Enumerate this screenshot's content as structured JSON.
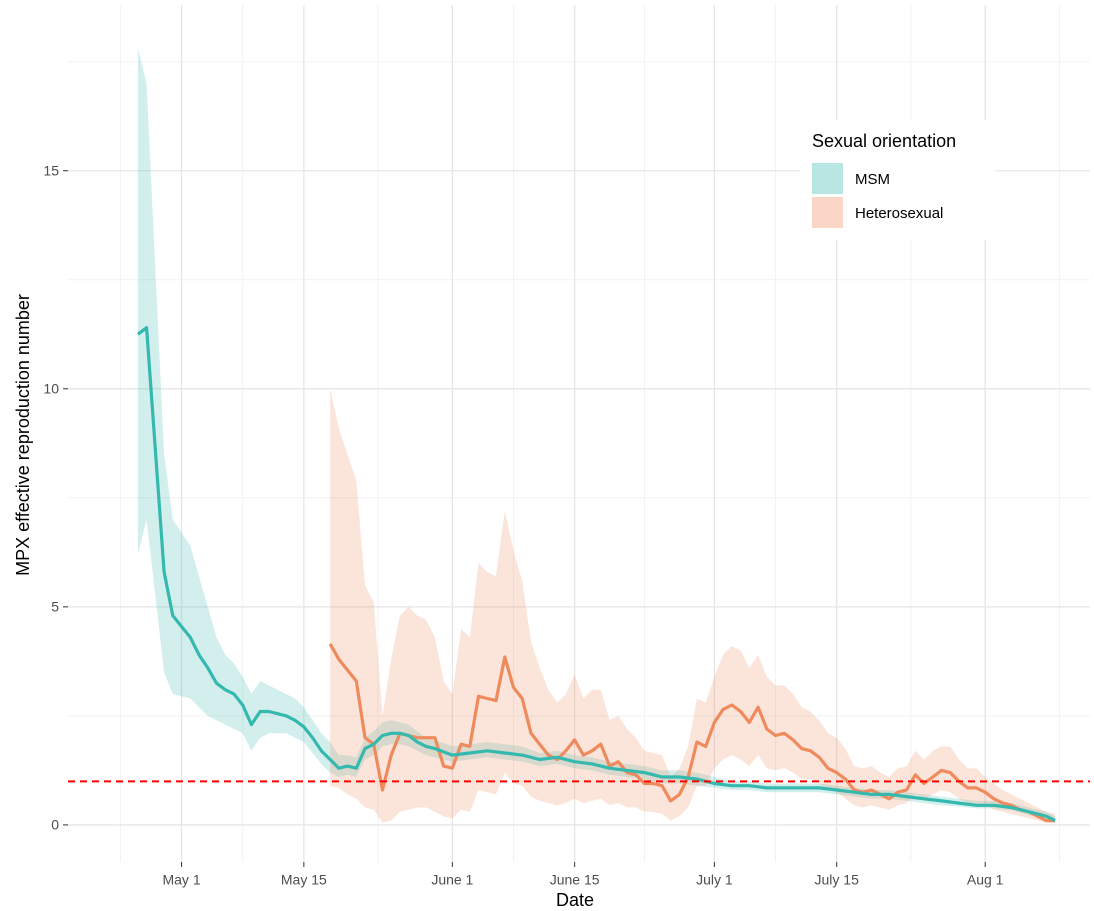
{
  "chart_data": {
    "type": "line",
    "x_label": "Date",
    "y_label": "MPX effective reproduction number",
    "xlim": [
      "Apr 18",
      "Aug 13"
    ],
    "xticks": [
      "May 1",
      "May 15",
      "June 1",
      "June 15",
      "July 1",
      "July 15",
      "Aug 1"
    ],
    "ylim": [
      -0.85,
      18.8
    ],
    "yticks": [
      0,
      5,
      10,
      15
    ],
    "grid": true,
    "reference_line": {
      "value": 1,
      "color": "#ff0000"
    },
    "legend_title": "Sexual orientation",
    "legend": "top right",
    "series": [
      {
        "name": "MSM",
        "color": "#35b8ae",
        "x": [
          "Apr 26",
          "Apr 27",
          "Apr 29",
          "Apr 30",
          "May 2",
          "May 3",
          "May 4",
          "May 5",
          "May 6",
          "May 7",
          "May 8",
          "May 9",
          "May 10",
          "May 11",
          "May 12",
          "May 13",
          "May 14",
          "May 15",
          "May 16",
          "May 17",
          "May 18",
          "May 19",
          "May 20",
          "May 21",
          "May 22",
          "May 23",
          "May 24",
          "May 25",
          "May 26",
          "May 27",
          "May 28",
          "May 29",
          "May 30",
          "June 1",
          "June 3",
          "June 5",
          "June 7",
          "June 9",
          "June 11",
          "June 13",
          "June 15",
          "June 17",
          "June 19",
          "June 21",
          "June 23",
          "June 25",
          "June 27",
          "June 29",
          "July 1",
          "July 3",
          "July 5",
          "July 7",
          "July 9",
          "July 11",
          "July 13",
          "July 15",
          "July 17",
          "July 19",
          "July 21",
          "July 23",
          "July 25",
          "July 27",
          "July 29",
          "July 31",
          "Aug 2",
          "Aug 4",
          "Aug 6",
          "Aug 8",
          "Aug 9"
        ],
        "values": [
          11.25,
          11.4,
          5.8,
          4.8,
          4.3,
          3.9,
          3.6,
          3.25,
          3.1,
          3.0,
          2.75,
          2.3,
          2.6,
          2.6,
          2.55,
          2.5,
          2.4,
          2.25,
          2.0,
          1.7,
          1.5,
          1.3,
          1.35,
          1.3,
          1.75,
          1.85,
          2.05,
          2.1,
          2.1,
          2.05,
          1.9,
          1.8,
          1.75,
          1.6,
          1.65,
          1.7,
          1.65,
          1.6,
          1.5,
          1.55,
          1.45,
          1.4,
          1.3,
          1.25,
          1.2,
          1.1,
          1.1,
          1.05,
          0.95,
          0.9,
          0.9,
          0.85,
          0.85,
          0.85,
          0.85,
          0.8,
          0.75,
          0.7,
          0.7,
          0.65,
          0.6,
          0.55,
          0.5,
          0.45,
          0.45,
          0.4,
          0.3,
          0.2,
          0.1
        ],
        "lower": [
          6.2,
          7.0,
          3.5,
          3.0,
          2.9,
          2.7,
          2.5,
          2.4,
          2.3,
          2.2,
          2.1,
          1.7,
          2.0,
          2.1,
          2.1,
          2.1,
          2.0,
          1.9,
          1.65,
          1.4,
          1.2,
          1.1,
          1.15,
          1.1,
          1.5,
          1.6,
          1.8,
          1.85,
          1.85,
          1.8,
          1.7,
          1.6,
          1.55,
          1.45,
          1.5,
          1.55,
          1.5,
          1.45,
          1.35,
          1.4,
          1.3,
          1.25,
          1.15,
          1.1,
          1.05,
          0.95,
          0.95,
          0.9,
          0.85,
          0.8,
          0.8,
          0.75,
          0.75,
          0.75,
          0.75,
          0.7,
          0.65,
          0.6,
          0.6,
          0.55,
          0.5,
          0.45,
          0.42,
          0.38,
          0.38,
          0.33,
          0.23,
          0.13,
          0.05
        ],
        "upper": [
          17.8,
          17.0,
          8.5,
          7.0,
          6.4,
          5.7,
          5.0,
          4.3,
          3.9,
          3.7,
          3.4,
          3.0,
          3.3,
          3.2,
          3.1,
          3.0,
          2.9,
          2.7,
          2.4,
          2.1,
          1.9,
          1.6,
          1.6,
          1.55,
          2.0,
          2.15,
          2.35,
          2.4,
          2.35,
          2.3,
          2.15,
          2.0,
          1.95,
          1.8,
          1.85,
          1.9,
          1.85,
          1.8,
          1.65,
          1.7,
          1.6,
          1.55,
          1.45,
          1.4,
          1.35,
          1.25,
          1.25,
          1.2,
          1.1,
          1.0,
          1.0,
          0.95,
          0.95,
          0.95,
          0.95,
          0.9,
          0.85,
          0.8,
          0.8,
          0.75,
          0.7,
          0.65,
          0.6,
          0.55,
          0.55,
          0.5,
          0.4,
          0.3,
          0.2
        ]
      },
      {
        "name": "Heterosexual",
        "color": "#ef8a5d",
        "x": [
          "May 18",
          "May 19",
          "May 20",
          "May 21",
          "May 22",
          "May 23",
          "May 24",
          "May 25",
          "May 26",
          "May 27",
          "May 28",
          "May 29",
          "May 30",
          "May 31",
          "June 1",
          "June 2",
          "June 3",
          "June 4",
          "June 5",
          "June 6",
          "June 7",
          "June 8",
          "June 9",
          "June 10",
          "June 11",
          "June 12",
          "June 13",
          "June 14",
          "June 15",
          "June 16",
          "June 17",
          "June 18",
          "June 19",
          "June 20",
          "June 21",
          "June 22",
          "June 23",
          "June 24",
          "June 25",
          "June 26",
          "June 27",
          "June 28",
          "June 29",
          "June 30",
          "July 1",
          "July 2",
          "July 3",
          "July 4",
          "July 5",
          "July 6",
          "July 7",
          "July 8",
          "July 9",
          "July 10",
          "July 11",
          "July 12",
          "July 13",
          "July 14",
          "July 15",
          "July 16",
          "July 17",
          "July 18",
          "July 19",
          "July 20",
          "July 21",
          "July 22",
          "July 23",
          "July 24",
          "July 25",
          "July 26",
          "July 27",
          "July 28",
          "July 29",
          "July 30",
          "July 31",
          "Aug 1",
          "Aug 2",
          "Aug 3",
          "Aug 4",
          "Aug 5",
          "Aug 6",
          "Aug 7",
          "Aug 8",
          "Aug 9"
        ],
        "values": [
          4.15,
          3.8,
          3.55,
          3.3,
          2.0,
          1.85,
          0.8,
          1.6,
          2.1,
          2.05,
          2.0,
          2.0,
          2.0,
          1.35,
          1.3,
          1.85,
          1.8,
          2.95,
          2.9,
          2.85,
          3.85,
          3.15,
          2.9,
          2.1,
          1.85,
          1.6,
          1.5,
          1.7,
          1.95,
          1.6,
          1.7,
          1.85,
          1.35,
          1.45,
          1.2,
          1.15,
          0.95,
          0.95,
          0.9,
          0.55,
          0.7,
          1.1,
          1.9,
          1.8,
          2.35,
          2.65,
          2.75,
          2.6,
          2.35,
          2.7,
          2.2,
          2.05,
          2.1,
          1.95,
          1.75,
          1.7,
          1.55,
          1.3,
          1.2,
          1.05,
          0.8,
          0.75,
          0.8,
          0.7,
          0.6,
          0.75,
          0.8,
          1.15,
          0.95,
          1.1,
          1.25,
          1.2,
          1.0,
          0.85,
          0.85,
          0.75,
          0.6,
          0.5,
          0.45,
          0.35,
          0.3,
          0.2,
          0.1,
          0.1
        ],
        "lower": [
          0.9,
          0.85,
          0.7,
          0.6,
          0.4,
          0.35,
          0.05,
          0.1,
          0.3,
          0.35,
          0.4,
          0.4,
          0.3,
          0.2,
          0.15,
          0.35,
          0.3,
          0.8,
          0.75,
          0.7,
          1.2,
          0.95,
          0.9,
          0.65,
          0.55,
          0.5,
          0.45,
          0.5,
          0.6,
          0.5,
          0.55,
          0.6,
          0.45,
          0.5,
          0.4,
          0.4,
          0.3,
          0.3,
          0.25,
          0.1,
          0.2,
          0.4,
          0.9,
          0.9,
          1.3,
          1.5,
          1.6,
          1.5,
          1.35,
          1.6,
          1.3,
          1.25,
          1.3,
          1.2,
          1.05,
          1.05,
          0.95,
          0.8,
          0.75,
          0.6,
          0.45,
          0.4,
          0.45,
          0.4,
          0.35,
          0.45,
          0.5,
          0.7,
          0.6,
          0.7,
          0.8,
          0.75,
          0.6,
          0.5,
          0.5,
          0.45,
          0.35,
          0.3,
          0.25,
          0.2,
          0.15,
          0.1,
          0.05,
          0.05
        ],
        "upper": [
          10.0,
          9.1,
          8.5,
          7.9,
          5.5,
          5.1,
          2.5,
          3.8,
          4.8,
          5.0,
          4.8,
          4.7,
          4.3,
          3.3,
          3.0,
          4.5,
          4.3,
          6.0,
          5.8,
          5.7,
          7.2,
          6.3,
          5.6,
          4.2,
          3.6,
          3.1,
          2.8,
          3.0,
          3.45,
          2.9,
          3.1,
          3.1,
          2.4,
          2.5,
          2.2,
          2.0,
          1.7,
          1.65,
          1.6,
          1.1,
          1.3,
          1.8,
          2.9,
          2.8,
          3.4,
          3.9,
          4.1,
          4.0,
          3.6,
          3.9,
          3.4,
          3.2,
          3.2,
          3.0,
          2.7,
          2.6,
          2.4,
          2.1,
          2.0,
          1.75,
          1.35,
          1.3,
          1.35,
          1.2,
          1.1,
          1.3,
          1.35,
          1.7,
          1.5,
          1.7,
          1.8,
          1.8,
          1.5,
          1.3,
          1.3,
          1.1,
          0.95,
          0.8,
          0.7,
          0.6,
          0.5,
          0.4,
          0.3,
          0.25
        ]
      }
    ]
  }
}
